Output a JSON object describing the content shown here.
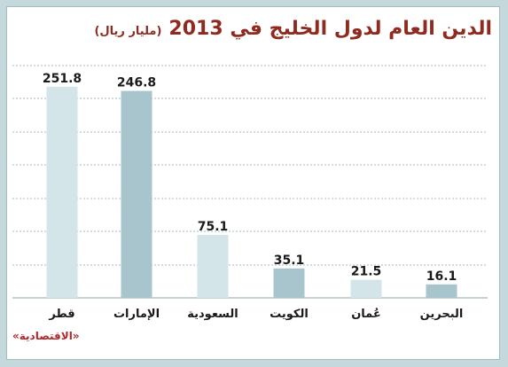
{
  "chart_data": {
    "type": "bar",
    "title": "الدين العام لدول الخليج في 2013",
    "subtitle": "(مليار ريال)",
    "categories": [
      "قطر",
      "الإمارات",
      "السعودية",
      "الكويت",
      "عُمان",
      "البحرين"
    ],
    "values": [
      251.8,
      246.8,
      75.1,
      35.1,
      21.5,
      16.1
    ],
    "value_labels": [
      "251.8",
      "246.8",
      "75.1",
      "35.1",
      "21.5",
      "16.1"
    ],
    "colors": [
      "#d3e5e8",
      "#a8c4cc",
      "#d3e5e8",
      "#a8c4cc",
      "#d3e5e8",
      "#a8c4cc"
    ],
    "ylim": [
      0,
      277
    ],
    "grid": true,
    "source": "«الاقتصادية»"
  }
}
